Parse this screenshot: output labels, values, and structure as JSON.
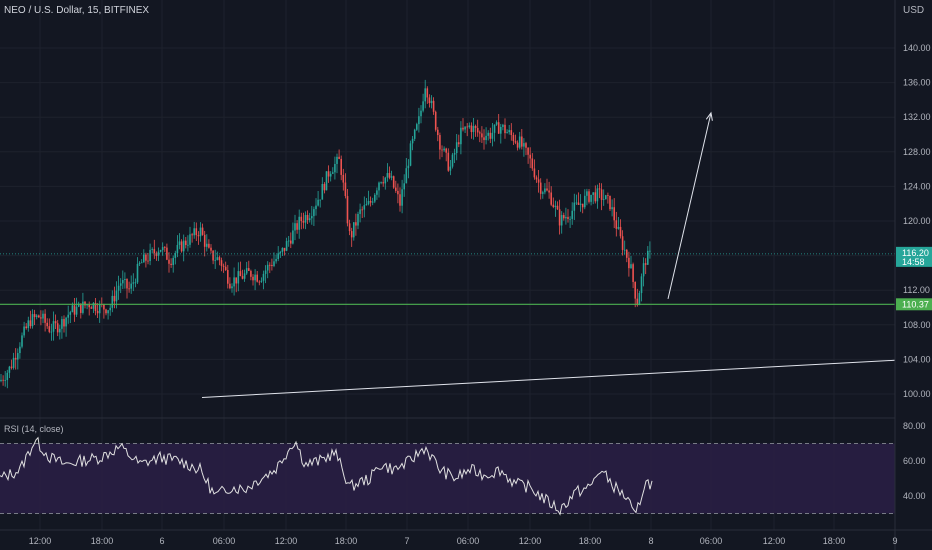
{
  "header": {
    "symbol_line": "NEO / U.S. Dollar, 15, BITFINEX",
    "currency": "USD"
  },
  "price_axis": {
    "ticks": [
      "140.00",
      "136.00",
      "132.00",
      "128.00",
      "124.00",
      "120.00",
      "116.00",
      "112.00",
      "108.00",
      "104.00",
      "100.00"
    ],
    "current_price": "116.20",
    "countdown": "14:58",
    "support_level": "110.37"
  },
  "rsi_panel": {
    "label": "RSI (14, close)",
    "ticks": [
      "80.00",
      "60.00",
      "40.00"
    ]
  },
  "time_axis": {
    "labels": [
      "12:00",
      "18:00",
      "6",
      "06:00",
      "12:00",
      "18:00",
      "7",
      "06:00",
      "12:00",
      "18:00",
      "8",
      "06:00",
      "12:00",
      "18:00",
      "9"
    ]
  },
  "colors": {
    "background": "#131722",
    "up": "#26a69a",
    "down": "#ef5350",
    "support_line": "#4caf50",
    "current_price_tag": "#26a69a",
    "rsi_fill": "#2a1f45",
    "rsi_line": "#e0e0e0"
  },
  "chart_data": {
    "type": "candlestick",
    "title": "NEO / U.S. Dollar, 15, BITFINEX",
    "ylim": [
      98,
      142
    ],
    "support_level": 110.37,
    "current_price": 116.2,
    "price_anchors": [
      [
        0,
        101.5
      ],
      [
        10,
        103
      ],
      [
        20,
        106
      ],
      [
        30,
        108.5
      ],
      [
        40,
        109
      ],
      [
        50,
        107.5
      ],
      [
        60,
        108
      ],
      [
        70,
        109.5
      ],
      [
        80,
        110
      ],
      [
        90,
        110.5
      ],
      [
        100,
        110
      ],
      [
        110,
        110
      ],
      [
        120,
        113
      ],
      [
        130,
        112
      ],
      [
        140,
        115
      ],
      [
        150,
        116
      ],
      [
        160,
        117
      ],
      [
        170,
        115.5
      ],
      [
        180,
        117
      ],
      [
        190,
        118
      ],
      [
        200,
        119
      ],
      [
        210,
        116
      ],
      [
        220,
        115.5
      ],
      [
        230,
        113
      ],
      [
        240,
        113.5
      ],
      [
        250,
        114
      ],
      [
        260,
        113.5
      ],
      [
        270,
        115
      ],
      [
        280,
        116
      ],
      [
        290,
        118
      ],
      [
        300,
        120
      ],
      [
        310,
        121
      ],
      [
        320,
        123
      ],
      [
        330,
        126
      ],
      [
        340,
        127
      ],
      [
        350,
        118
      ],
      [
        360,
        121
      ],
      [
        370,
        122
      ],
      [
        380,
        125
      ],
      [
        390,
        125
      ],
      [
        400,
        122
      ],
      [
        410,
        128
      ],
      [
        420,
        132
      ],
      [
        425,
        136
      ],
      [
        430,
        134
      ],
      [
        440,
        129
      ],
      [
        450,
        126
      ],
      [
        460,
        130
      ],
      [
        470,
        131
      ],
      [
        480,
        130
      ],
      [
        490,
        130
      ],
      [
        500,
        131
      ],
      [
        510,
        130
      ],
      [
        520,
        129
      ],
      [
        530,
        127
      ],
      [
        540,
        124
      ],
      [
        550,
        123
      ],
      [
        560,
        120
      ],
      [
        570,
        121
      ],
      [
        580,
        122
      ],
      [
        590,
        123
      ],
      [
        600,
        123
      ],
      [
        610,
        122
      ],
      [
        620,
        118
      ],
      [
        630,
        115
      ],
      [
        637,
        110.5
      ],
      [
        645,
        115.5
      ],
      [
        652,
        116.2
      ]
    ],
    "rsi": {
      "label": "RSI (14, close)",
      "ylim": [
        20,
        85
      ],
      "upper_band": 70,
      "lower_band": 30,
      "anchors": [
        [
          0,
          50
        ],
        [
          20,
          55
        ],
        [
          35,
          72
        ],
        [
          50,
          62
        ],
        [
          65,
          58
        ],
        [
          80,
          60
        ],
        [
          100,
          62
        ],
        [
          120,
          68
        ],
        [
          140,
          58
        ],
        [
          160,
          62
        ],
        [
          180,
          60
        ],
        [
          200,
          55
        ],
        [
          215,
          40
        ],
        [
          230,
          45
        ],
        [
          245,
          44
        ],
        [
          260,
          50
        ],
        [
          275,
          55
        ],
        [
          295,
          72
        ],
        [
          305,
          58
        ],
        [
          320,
          60
        ],
        [
          335,
          65
        ],
        [
          350,
          45
        ],
        [
          360,
          48
        ],
        [
          370,
          50
        ],
        [
          380,
          58
        ],
        [
          395,
          55
        ],
        [
          410,
          60
        ],
        [
          425,
          68
        ],
        [
          440,
          55
        ],
        [
          455,
          50
        ],
        [
          470,
          55
        ],
        [
          485,
          52
        ],
        [
          500,
          55
        ],
        [
          515,
          47
        ],
        [
          530,
          45
        ],
        [
          545,
          38
        ],
        [
          560,
          32
        ],
        [
          575,
          42
        ],
        [
          590,
          45
        ],
        [
          600,
          55
        ],
        [
          615,
          45
        ],
        [
          628,
          38
        ],
        [
          635,
          27
        ],
        [
          645,
          48
        ],
        [
          652,
          47
        ]
      ]
    },
    "trend_lines": [
      {
        "name": "projection-arrow",
        "from": [
          668,
          111
        ],
        "to": [
          711,
          132.5
        ]
      },
      {
        "name": "rising-trendline",
        "from": [
          202,
          99.6
        ],
        "to": [
          895,
          103.9
        ]
      }
    ],
    "x_labels": [
      "12:00",
      "18:00",
      "6",
      "06:00",
      "12:00",
      "18:00",
      "7",
      "06:00",
      "12:00",
      "18:00",
      "8",
      "06:00",
      "12:00",
      "18:00",
      "9"
    ]
  }
}
